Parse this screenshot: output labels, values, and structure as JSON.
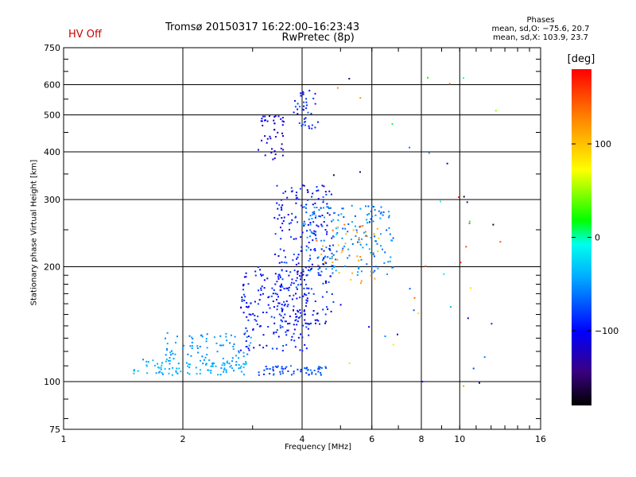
{
  "header": {
    "hv_status": "HV Off",
    "title_line1": "Tromsø 20150317 16:22:00–16:23:43",
    "title_line2": "RwPretec (8p)",
    "phases_heading": "Phases",
    "phases_o": "mean, sd,O: −75.6, 20.7",
    "phases_x": "mean, sd,X: 103.9, 23.7"
  },
  "colorbar": {
    "label": "[deg]",
    "ticks": [
      {
        "value": 100,
        "label": "100"
      },
      {
        "value": 0,
        "label": "0"
      },
      {
        "value": -100,
        "label": "−100"
      }
    ],
    "range": [
      -180,
      180
    ]
  },
  "chart_data": {
    "type": "scatter",
    "title": "Tromsø 20150317 16:22:00–16:23:43",
    "subtitle": "RwPretec (8p)",
    "xlabel": "Frequency [MHz]",
    "ylabel": "Stationary phase Virtual Height [km]",
    "xscale": "log",
    "yscale": "log",
    "xlim": [
      1,
      16
    ],
    "ylim": [
      75,
      750
    ],
    "grid": true,
    "x_ticks": [
      {
        "value": 1,
        "label": "1"
      },
      {
        "value": 2,
        "label": "2"
      },
      {
        "value": 4,
        "label": "4"
      },
      {
        "value": 6,
        "label": "6"
      },
      {
        "value": 8,
        "label": "8"
      },
      {
        "value": 10,
        "label": "10"
      },
      {
        "value": 16,
        "label": "16"
      }
    ],
    "y_ticks": [
      {
        "value": 75,
        "label": "75"
      },
      {
        "value": 100,
        "label": "100"
      },
      {
        "value": 200,
        "label": "200"
      },
      {
        "value": 300,
        "label": "300"
      },
      {
        "value": 400,
        "label": "400"
      },
      {
        "value": 500,
        "label": "500"
      },
      {
        "value": 600,
        "label": "600"
      },
      {
        "value": 750,
        "label": "750"
      }
    ],
    "clusters": [
      {
        "x": [
          1.5,
          2.9
        ],
        "y": [
          104,
          115
        ],
        "phase": [
          -55,
          -30
        ]
      },
      {
        "x": [
          1.8,
          3.0
        ],
        "y": [
          115,
          135
        ],
        "phase": [
          -60,
          -40
        ]
      },
      {
        "x": [
          3.1,
          4.6
        ],
        "y": [
          104,
          110
        ],
        "phase": [
          -95,
          -60
        ]
      },
      {
        "x": [
          2.8,
          4.2
        ],
        "y": [
          120,
          200
        ],
        "phase": [
          -115,
          -75
        ]
      },
      {
        "x": [
          3.4,
          4.8
        ],
        "y": [
          140,
          330
        ],
        "phase": [
          -120,
          -70
        ]
      },
      {
        "x": [
          4.0,
          6.8
        ],
        "y": [
          190,
          290
        ],
        "phase": [
          -75,
          -40
        ]
      },
      {
        "x": [
          4.3,
          6.3
        ],
        "y": [
          180,
          260
        ],
        "phase": [
          90,
          140
        ]
      },
      {
        "x": [
          3.1,
          3.6
        ],
        "y": [
          380,
          500
        ],
        "phase": [
          -130,
          -100
        ]
      },
      {
        "x": [
          3.8,
          4.4
        ],
        "y": [
          460,
          580
        ],
        "phase": [
          -110,
          -65
        ]
      },
      {
        "x": [
          4.8,
          13.0
        ],
        "y": [
          90,
          700
        ],
        "phase": [
          -170,
          170
        ]
      }
    ]
  }
}
